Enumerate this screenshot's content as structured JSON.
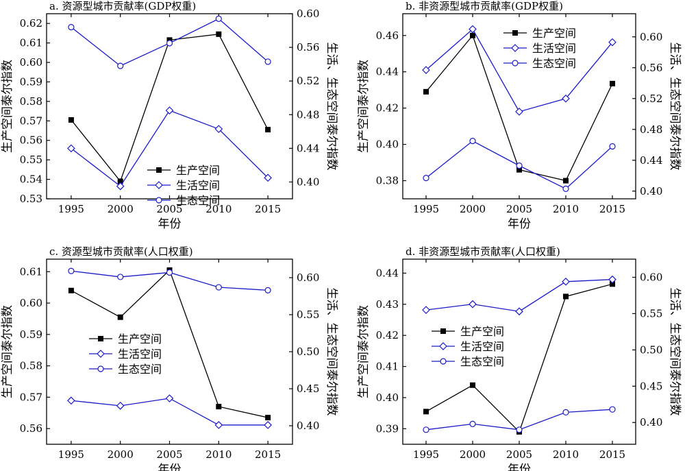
{
  "chart_data": [
    {
      "type": "line",
      "title": "a. 资源型城市贡献率(GDP权重)",
      "xlabel": "年份",
      "ylabel": "生产空间泰尔指数",
      "ylabel_right": "生活、生态空间泰尔指数",
      "x": [
        "1995",
        "2000",
        "2005",
        "2010",
        "2015"
      ],
      "ylim": [
        0.53,
        0.625
      ],
      "yticks": [
        "0.53",
        "0.54",
        "0.55",
        "0.56",
        "0.57",
        "0.58",
        "0.59",
        "0.60",
        "0.61",
        "0.62"
      ],
      "ylim_right": [
        0.38,
        0.6
      ],
      "yticks_right": [
        "0.40",
        "0.44",
        "0.48",
        "0.52",
        "0.56",
        "0.60"
      ],
      "legend_position": "bottom-center",
      "series": [
        {
          "name": "生产空间",
          "axis": "left",
          "marker": "square",
          "color": "#000000",
          "values": [
            0.5705,
            0.539,
            0.6115,
            0.6145,
            0.5655
          ]
        },
        {
          "name": "生活空间",
          "axis": "right",
          "marker": "diamond",
          "color": "#1a1ac8",
          "values": [
            0.44,
            0.395,
            0.485,
            0.463,
            0.405
          ]
        },
        {
          "name": "生态空间",
          "axis": "right",
          "marker": "circle",
          "color": "#1a1ac8",
          "values": [
            0.584,
            0.538,
            0.565,
            0.594,
            0.543
          ]
        }
      ]
    },
    {
      "type": "line",
      "title": "b. 非资源型城市贡献率(GDP权重)",
      "xlabel": "年份",
      "ylabel": "生产空间泰尔指数",
      "ylabel_right": "生活、生态空间泰尔指数",
      "x": [
        "1995",
        "2000",
        "2005",
        "2010",
        "2015"
      ],
      "ylim": [
        0.37,
        0.472
      ],
      "yticks": [
        "0.38",
        "0.40",
        "0.42",
        "0.44",
        "0.46"
      ],
      "ylim_right": [
        0.39,
        0.63
      ],
      "yticks_right": [
        "0.40",
        "0.44",
        "0.48",
        "0.52",
        "0.56",
        "0.60"
      ],
      "legend_position": "top-center",
      "series": [
        {
          "name": "生产空间",
          "axis": "left",
          "marker": "square",
          "color": "#000000",
          "values": [
            0.429,
            0.46,
            0.386,
            0.38,
            0.4335
          ]
        },
        {
          "name": "生活空间",
          "axis": "right",
          "marker": "diamond",
          "color": "#1a1ac8",
          "values": [
            0.557,
            0.61,
            0.503,
            0.52,
            0.593
          ]
        },
        {
          "name": "生态空间",
          "axis": "right",
          "marker": "circle",
          "color": "#1a1ac8",
          "values": [
            0.417,
            0.465,
            0.433,
            0.403,
            0.458
          ]
        }
      ]
    },
    {
      "type": "line",
      "title": "c. 资源型城市贡献率(人口权重)",
      "xlabel": "年份",
      "ylabel": "生产空间泰尔指数",
      "ylabel_right": "生活、生态空间泰尔指数",
      "x": [
        "1995",
        "2000",
        "2005",
        "2010",
        "2015"
      ],
      "ylim": [
        0.555,
        0.614
      ],
      "yticks": [
        "0.56",
        "0.57",
        "0.58",
        "0.59",
        "0.60",
        "0.61"
      ],
      "ylim_right": [
        0.375,
        0.625
      ],
      "yticks_right": [
        "0.40",
        "0.45",
        "0.50",
        "0.55",
        "0.60"
      ],
      "legend_position": "center-left",
      "series": [
        {
          "name": "生产空间",
          "axis": "left",
          "marker": "square",
          "color": "#000000",
          "values": [
            0.604,
            0.5955,
            0.6105,
            0.567,
            0.5635
          ]
        },
        {
          "name": "生活空间",
          "axis": "right",
          "marker": "diamond",
          "color": "#1a1ac8",
          "values": [
            0.434,
            0.427,
            0.437,
            0.401,
            0.401
          ]
        },
        {
          "name": "生态空间",
          "axis": "right",
          "marker": "circle",
          "color": "#1a1ac8",
          "values": [
            0.609,
            0.601,
            0.607,
            0.587,
            0.583
          ]
        }
      ]
    },
    {
      "type": "line",
      "title": "d. 非资源型城市贡献率(人口权重)",
      "xlabel": "年份",
      "ylabel": "生产空间泰尔指数",
      "ylabel_right": "生活、生态空间泰尔指数",
      "x": [
        "1995",
        "2000",
        "2005",
        "2010",
        "2015"
      ],
      "ylim": [
        0.385,
        0.4445
      ],
      "yticks": [
        "0.39",
        "0.40",
        "0.41",
        "0.42",
        "0.43",
        "0.44"
      ],
      "ylim_right": [
        0.37,
        0.625
      ],
      "yticks_right": [
        "0.40",
        "0.45",
        "0.50",
        "0.55",
        "0.60"
      ],
      "legend_position": "center-left",
      "series": [
        {
          "name": "生产空间",
          "axis": "left",
          "marker": "square",
          "color": "#000000",
          "values": [
            0.3955,
            0.404,
            0.389,
            0.4325,
            0.4365
          ]
        },
        {
          "name": "生活空间",
          "axis": "right",
          "marker": "diamond",
          "color": "#1a1ac8",
          "values": [
            0.555,
            0.563,
            0.553,
            0.594,
            0.597
          ]
        },
        {
          "name": "生态空间",
          "axis": "right",
          "marker": "circle",
          "color": "#1a1ac8",
          "values": [
            0.39,
            0.398,
            0.39,
            0.414,
            0.418
          ]
        }
      ]
    }
  ]
}
